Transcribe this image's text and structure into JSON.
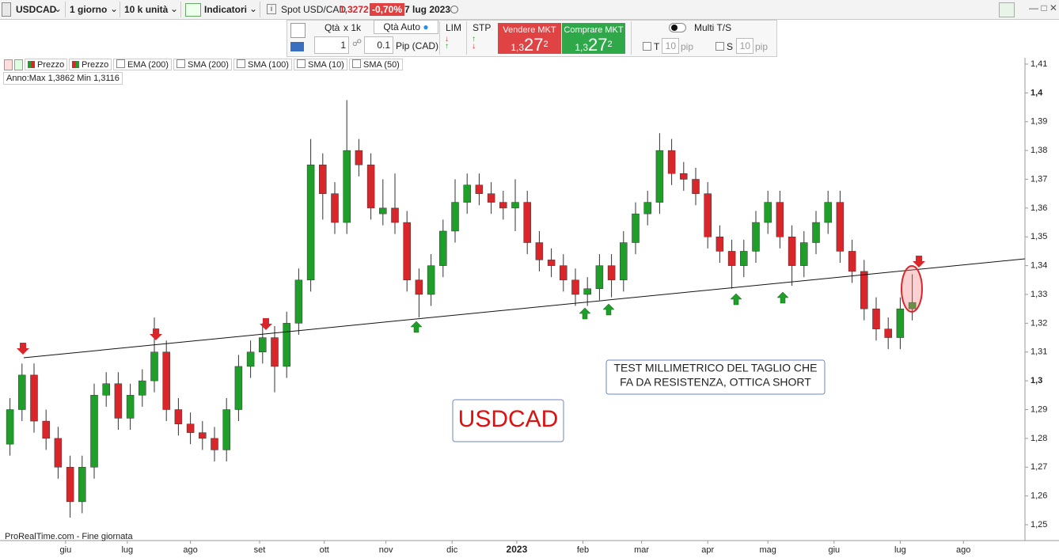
{
  "toolbar": {
    "symbol": "USDCAD",
    "period": "1 giorno",
    "quantity": "10 k unità",
    "indicators": "Indicatori",
    "instrument": "Spot USD/CAD",
    "price": "1,3272",
    "change": "-0,70%",
    "date": "7 lug 2023"
  },
  "order_bar": {
    "qty_label": "Qtà",
    "qty_multiplier": "x 1k",
    "qty_auto": "Qtà Auto",
    "qty_value": "1",
    "pip_value": "0.1",
    "pip_unit": "Pip (CAD)",
    "lim": "LIM",
    "stp": "STP",
    "sell": {
      "label": "Vendere MKT",
      "price_prefix": "1,3",
      "price_main": "27",
      "price_suffix": "2"
    },
    "buy": {
      "label": "Comprare MKT",
      "price_prefix": "1,3",
      "price_main": "27",
      "price_suffix": "2"
    },
    "multi_ts": "Multi T/S",
    "t_label": "T",
    "t_value": "10",
    "t_unit": "pip",
    "s_label": "S",
    "s_value": "10",
    "s_unit": "pip"
  },
  "indicators": [
    "Prezzo",
    "Prezzo",
    "EMA (200)",
    "SMA (200)",
    "SMA (100)",
    "SMA (10)",
    "SMA (50)"
  ],
  "chart_data": {
    "type": "candlestick",
    "range_label": "Anno:Max 1,3862 Min 1,3116",
    "footer": "ProRealTime.com - Fine giornata",
    "annotations": [
      "TEST MILLIMETRICO DEL TAGLIO CHE",
      "FA DA RESISTENZA, OTTICA SHORT",
      "USDCAD"
    ],
    "up_color": "#1f9e2a",
    "down_color": "#d8262a",
    "x": [
      2,
      6,
      10,
      14,
      18,
      22,
      26,
      30,
      34,
      38,
      42,
      46,
      50,
      54,
      58,
      62,
      66,
      70,
      74,
      78,
      82,
      86,
      90,
      94,
      98,
      102,
      106,
      110,
      114,
      118,
      122,
      126,
      130,
      134,
      138,
      142,
      146,
      150,
      154,
      158,
      162,
      166,
      170,
      174,
      178,
      182,
      186,
      190,
      194,
      198,
      202,
      206,
      210,
      214,
      218,
      222,
      226,
      230,
      234,
      238,
      242,
      246,
      250,
      254,
      258,
      262,
      266,
      270,
      274,
      278,
      282,
      286,
      290,
      294,
      298,
      302
    ],
    "open": [
      1.278,
      1.29,
      1.302,
      1.286,
      1.28,
      1.27,
      1.258,
      1.27,
      1.295,
      1.299,
      1.287,
      1.295,
      1.3,
      1.31,
      1.29,
      1.285,
      1.282,
      1.28,
      1.276,
      1.29,
      1.305,
      1.31,
      1.315,
      1.305,
      1.32,
      1.335,
      1.375,
      1.365,
      1.355,
      1.38,
      1.375,
      1.358,
      1.36,
      1.355,
      1.335,
      1.33,
      1.34,
      1.352,
      1.362,
      1.368,
      1.365,
      1.362,
      1.36,
      1.362,
      1.348,
      1.342,
      1.34,
      1.335,
      1.33,
      1.332,
      1.34,
      1.335,
      1.348,
      1.358,
      1.362,
      1.38,
      1.372,
      1.37,
      1.365,
      1.35,
      1.345,
      1.34,
      1.345,
      1.355,
      1.362,
      1.35,
      1.34,
      1.348,
      1.355,
      1.362,
      1.345,
      1.338,
      1.325,
      1.318,
      1.315,
      1.325
    ],
    "high": [
      1.294,
      1.306,
      1.306,
      1.29,
      1.284,
      1.274,
      1.274,
      1.299,
      1.303,
      1.303,
      1.299,
      1.304,
      1.322,
      1.314,
      1.294,
      1.289,
      1.286,
      1.284,
      1.294,
      1.309,
      1.314,
      1.32,
      1.319,
      1.324,
      1.339,
      1.384,
      1.379,
      1.369,
      1.3975,
      1.384,
      1.379,
      1.37,
      1.372,
      1.359,
      1.339,
      1.344,
      1.356,
      1.37,
      1.372,
      1.372,
      1.369,
      1.366,
      1.37,
      1.366,
      1.352,
      1.346,
      1.344,
      1.339,
      1.336,
      1.344,
      1.344,
      1.352,
      1.362,
      1.366,
      1.386,
      1.384,
      1.376,
      1.374,
      1.369,
      1.354,
      1.349,
      1.349,
      1.359,
      1.366,
      1.366,
      1.354,
      1.352,
      1.359,
      1.366,
      1.366,
      1.349,
      1.342,
      1.329,
      1.322,
      1.329,
      1.337
    ],
    "low": [
      1.274,
      1.286,
      1.282,
      1.276,
      1.266,
      1.2525,
      1.254,
      1.266,
      1.291,
      1.283,
      1.283,
      1.291,
      1.296,
      1.286,
      1.281,
      1.278,
      1.276,
      1.272,
      1.272,
      1.286,
      1.301,
      1.306,
      1.296,
      1.301,
      1.316,
      1.331,
      1.356,
      1.351,
      1.351,
      1.371,
      1.356,
      1.354,
      1.351,
      1.331,
      1.322,
      1.326,
      1.336,
      1.348,
      1.358,
      1.361,
      1.358,
      1.356,
      1.352,
      1.344,
      1.338,
      1.336,
      1.331,
      1.326,
      1.326,
      1.328,
      1.329,
      1.331,
      1.344,
      1.354,
      1.358,
      1.368,
      1.366,
      1.361,
      1.346,
      1.341,
      1.332,
      1.336,
      1.341,
      1.351,
      1.346,
      1.333,
      1.336,
      1.344,
      1.351,
      1.341,
      1.334,
      1.321,
      1.314,
      1.311,
      1.311,
      1.321
    ],
    "close": [
      1.29,
      1.302,
      1.286,
      1.28,
      1.27,
      1.258,
      1.27,
      1.295,
      1.299,
      1.287,
      1.295,
      1.3,
      1.31,
      1.29,
      1.285,
      1.282,
      1.28,
      1.276,
      1.29,
      1.305,
      1.31,
      1.315,
      1.305,
      1.32,
      1.335,
      1.375,
      1.365,
      1.355,
      1.38,
      1.375,
      1.36,
      1.36,
      1.355,
      1.335,
      1.33,
      1.34,
      1.352,
      1.362,
      1.368,
      1.365,
      1.362,
      1.36,
      1.362,
      1.348,
      1.342,
      1.34,
      1.335,
      1.33,
      1.332,
      1.34,
      1.335,
      1.348,
      1.358,
      1.362,
      1.38,
      1.372,
      1.37,
      1.365,
      1.35,
      1.345,
      1.34,
      1.345,
      1.355,
      1.362,
      1.35,
      1.34,
      1.348,
      1.355,
      1.362,
      1.345,
      1.338,
      1.325,
      1.318,
      1.315,
      1.325,
      1.3272
    ],
    "xlim": [
      0,
      340
    ],
    "xticks": [
      {
        "value": 20.5,
        "label": "giu"
      },
      {
        "value": 41,
        "label": "lug"
      },
      {
        "value": 62,
        "label": "ago"
      },
      {
        "value": 85,
        "label": "set"
      },
      {
        "value": 106.5,
        "label": "ott"
      },
      {
        "value": 127,
        "label": "nov"
      },
      {
        "value": 149,
        "label": "dic"
      },
      {
        "value": 170.5,
        "label": "2023"
      },
      {
        "value": 192.5,
        "label": "feb"
      },
      {
        "value": 212,
        "label": "mar"
      },
      {
        "value": 234,
        "label": "apr"
      },
      {
        "value": 254,
        "label": "mag"
      },
      {
        "value": 276,
        "label": "giu"
      },
      {
        "value": 298,
        "label": "lug"
      },
      {
        "value": 319,
        "label": "ago"
      }
    ],
    "ylim": [
      1.25,
      1.41
    ],
    "yticks": [
      {
        "value": 1.41,
        "label": "1,41"
      },
      {
        "value": 1.4,
        "label": "1,4"
      },
      {
        "value": 1.39,
        "label": "1,39"
      },
      {
        "value": 1.38,
        "label": "1,38"
      },
      {
        "value": 1.37,
        "label": "1,37"
      },
      {
        "value": 1.36,
        "label": "1,36"
      },
      {
        "value": 1.35,
        "label": "1,35"
      },
      {
        "value": 1.34,
        "label": "1,34"
      },
      {
        "value": 1.33,
        "label": "1,33"
      },
      {
        "value": 1.32,
        "label": "1,32"
      },
      {
        "value": 1.31,
        "label": "1,31"
      },
      {
        "value": 1.3,
        "label": "1,3"
      },
      {
        "value": 1.29,
        "label": "1,29"
      },
      {
        "value": 1.28,
        "label": "1,28"
      },
      {
        "value": 1.27,
        "label": "1,27"
      },
      {
        "value": 1.26,
        "label": "1,26"
      },
      {
        "value": 1.25,
        "label": "1,25"
      }
    ]
  }
}
